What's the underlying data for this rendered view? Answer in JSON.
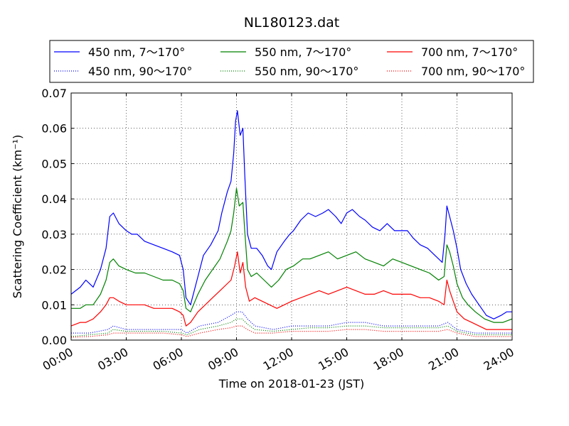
{
  "chart_data": {
    "type": "line",
    "title": "NL180123.dat",
    "xlabel": "Time on 2018-01-23 (JST)",
    "ylabel": "Scattering Coefficient (km⁻¹)",
    "xlim": [
      0,
      24
    ],
    "ylim": [
      0,
      0.07
    ],
    "grid": true,
    "legend_position": "top",
    "x_ticks": [
      {
        "value": 0,
        "label": "00:00"
      },
      {
        "value": 3,
        "label": "03:00"
      },
      {
        "value": 6,
        "label": "06:00"
      },
      {
        "value": 9,
        "label": "09:00"
      },
      {
        "value": 12,
        "label": "12:00"
      },
      {
        "value": 15,
        "label": "15:00"
      },
      {
        "value": 18,
        "label": "18:00"
      },
      {
        "value": 21,
        "label": "21:00"
      },
      {
        "value": 24,
        "label": "24:00"
      }
    ],
    "y_ticks": [
      {
        "value": 0.0,
        "label": "0.00"
      },
      {
        "value": 0.01,
        "label": "0.01"
      },
      {
        "value": 0.02,
        "label": "0.02"
      },
      {
        "value": 0.03,
        "label": "0.03"
      },
      {
        "value": 0.04,
        "label": "0.04"
      },
      {
        "value": 0.05,
        "label": "0.05"
      },
      {
        "value": 0.06,
        "label": "0.06"
      },
      {
        "value": 0.07,
        "label": "0.07"
      }
    ],
    "series": [
      {
        "name": "450 nm, 7～170°",
        "color": "#0000ff",
        "style": "solid",
        "x": [
          0,
          0.5,
          0.8,
          1.2,
          1.6,
          1.9,
          2.1,
          2.3,
          2.6,
          3.0,
          3.3,
          3.6,
          4.0,
          4.5,
          5.0,
          5.5,
          5.9,
          6.1,
          6.25,
          6.5,
          6.9,
          7.2,
          7.6,
          8.0,
          8.2,
          8.5,
          8.7,
          8.85,
          8.95,
          9.05,
          9.2,
          9.35,
          9.45,
          9.6,
          9.8,
          10.1,
          10.4,
          10.7,
          10.9,
          11.2,
          11.6,
          11.9,
          12.1,
          12.5,
          12.9,
          13.3,
          13.7,
          14.0,
          14.4,
          14.7,
          15.0,
          15.3,
          15.7,
          16.0,
          16.4,
          16.8,
          17.2,
          17.6,
          18.0,
          18.3,
          18.6,
          19.0,
          19.4,
          19.8,
          20.2,
          20.35,
          20.45,
          20.6,
          20.8,
          21.0,
          21.2,
          21.5,
          21.8,
          22.2,
          22.6,
          23.0,
          23.4,
          23.7,
          24.0
        ],
        "y": [
          0.013,
          0.015,
          0.017,
          0.015,
          0.02,
          0.026,
          0.035,
          0.036,
          0.033,
          0.031,
          0.03,
          0.03,
          0.028,
          0.027,
          0.026,
          0.025,
          0.024,
          0.02,
          0.012,
          0.01,
          0.018,
          0.024,
          0.027,
          0.031,
          0.036,
          0.042,
          0.045,
          0.053,
          0.062,
          0.065,
          0.058,
          0.06,
          0.047,
          0.03,
          0.026,
          0.026,
          0.024,
          0.021,
          0.02,
          0.025,
          0.028,
          0.03,
          0.031,
          0.034,
          0.036,
          0.035,
          0.036,
          0.037,
          0.035,
          0.033,
          0.036,
          0.037,
          0.035,
          0.034,
          0.032,
          0.031,
          0.033,
          0.031,
          0.031,
          0.031,
          0.029,
          0.027,
          0.026,
          0.024,
          0.022,
          0.03,
          0.038,
          0.035,
          0.031,
          0.026,
          0.02,
          0.016,
          0.013,
          0.01,
          0.007,
          0.006,
          0.007,
          0.008,
          0.008
        ]
      },
      {
        "name": "550 nm, 7～170°",
        "color": "#008000",
        "style": "solid",
        "x": [
          0,
          0.5,
          0.8,
          1.2,
          1.6,
          1.9,
          2.1,
          2.3,
          2.6,
          3.0,
          3.5,
          4.0,
          4.5,
          5.0,
          5.5,
          5.9,
          6.1,
          6.25,
          6.5,
          6.9,
          7.3,
          7.7,
          8.1,
          8.5,
          8.7,
          8.85,
          9.0,
          9.15,
          9.35,
          9.45,
          9.6,
          9.8,
          10.1,
          10.5,
          10.9,
          11.3,
          11.7,
          12.1,
          12.6,
          13.0,
          13.5,
          14.0,
          14.5,
          15.0,
          15.5,
          16.0,
          16.5,
          17.0,
          17.5,
          18.0,
          18.5,
          19.0,
          19.5,
          20.0,
          20.3,
          20.45,
          20.6,
          20.8,
          21.0,
          21.3,
          21.6,
          22.0,
          22.5,
          23.0,
          23.5,
          24.0
        ],
        "y": [
          0.009,
          0.009,
          0.01,
          0.01,
          0.013,
          0.017,
          0.022,
          0.023,
          0.021,
          0.02,
          0.019,
          0.019,
          0.018,
          0.017,
          0.017,
          0.016,
          0.014,
          0.009,
          0.008,
          0.013,
          0.017,
          0.02,
          0.023,
          0.028,
          0.031,
          0.036,
          0.043,
          0.038,
          0.039,
          0.031,
          0.02,
          0.018,
          0.019,
          0.017,
          0.015,
          0.017,
          0.02,
          0.021,
          0.023,
          0.023,
          0.024,
          0.025,
          0.023,
          0.024,
          0.025,
          0.023,
          0.022,
          0.021,
          0.023,
          0.022,
          0.021,
          0.02,
          0.019,
          0.017,
          0.018,
          0.027,
          0.025,
          0.021,
          0.016,
          0.012,
          0.01,
          0.008,
          0.006,
          0.005,
          0.005,
          0.006
        ]
      },
      {
        "name": "700 nm, 7～170°",
        "color": "#ff0000",
        "style": "solid",
        "x": [
          0,
          0.5,
          0.8,
          1.2,
          1.6,
          1.9,
          2.1,
          2.3,
          2.6,
          3.0,
          3.5,
          4.0,
          4.5,
          5.0,
          5.5,
          5.9,
          6.1,
          6.25,
          6.5,
          6.9,
          7.3,
          7.7,
          8.1,
          8.5,
          8.7,
          8.9,
          9.05,
          9.2,
          9.35,
          9.5,
          9.7,
          10.0,
          10.4,
          10.8,
          11.2,
          11.6,
          12.0,
          12.5,
          13.0,
          13.5,
          14.0,
          14.5,
          15.0,
          15.5,
          16.0,
          16.5,
          17.0,
          17.5,
          18.0,
          18.5,
          19.0,
          19.5,
          20.0,
          20.3,
          20.45,
          20.6,
          20.8,
          21.0,
          21.4,
          21.8,
          22.2,
          22.6,
          23.0,
          23.5,
          24.0
        ],
        "y": [
          0.004,
          0.005,
          0.005,
          0.006,
          0.008,
          0.01,
          0.012,
          0.012,
          0.011,
          0.01,
          0.01,
          0.01,
          0.009,
          0.009,
          0.009,
          0.008,
          0.007,
          0.004,
          0.005,
          0.008,
          0.01,
          0.012,
          0.014,
          0.016,
          0.017,
          0.021,
          0.025,
          0.019,
          0.022,
          0.015,
          0.011,
          0.012,
          0.011,
          0.01,
          0.009,
          0.01,
          0.011,
          0.012,
          0.013,
          0.014,
          0.013,
          0.014,
          0.015,
          0.014,
          0.013,
          0.013,
          0.014,
          0.013,
          0.013,
          0.013,
          0.012,
          0.012,
          0.011,
          0.01,
          0.017,
          0.014,
          0.011,
          0.008,
          0.006,
          0.005,
          0.004,
          0.003,
          0.003,
          0.003,
          0.003
        ]
      },
      {
        "name": "450 nm, 90～170°",
        "color": "#0000ff",
        "style": "dotted",
        "x": [
          0,
          1.0,
          2.0,
          2.3,
          3.0,
          4.0,
          5.0,
          6.0,
          6.3,
          7.0,
          8.0,
          8.7,
          9.0,
          9.3,
          9.6,
          10.0,
          11.0,
          12.0,
          13.0,
          14.0,
          15.0,
          16.0,
          17.0,
          18.0,
          19.0,
          20.0,
          20.5,
          21.0,
          22.0,
          23.0,
          24.0
        ],
        "y": [
          0.002,
          0.002,
          0.003,
          0.004,
          0.003,
          0.003,
          0.003,
          0.003,
          0.002,
          0.004,
          0.005,
          0.007,
          0.008,
          0.008,
          0.006,
          0.004,
          0.003,
          0.004,
          0.004,
          0.004,
          0.005,
          0.005,
          0.004,
          0.004,
          0.004,
          0.004,
          0.005,
          0.003,
          0.002,
          0.002,
          0.002
        ]
      },
      {
        "name": "550 nm, 90～170°",
        "color": "#008000",
        "style": "dotted",
        "x": [
          0,
          1.0,
          2.0,
          2.3,
          3.0,
          4.0,
          5.0,
          6.0,
          6.3,
          7.0,
          8.0,
          8.7,
          9.0,
          9.3,
          9.6,
          10.0,
          11.0,
          12.0,
          13.0,
          14.0,
          15.0,
          16.0,
          17.0,
          18.0,
          19.0,
          20.0,
          20.5,
          21.0,
          22.0,
          23.0,
          24.0
        ],
        "y": [
          0.001,
          0.0015,
          0.002,
          0.003,
          0.0025,
          0.0025,
          0.0025,
          0.002,
          0.0015,
          0.003,
          0.004,
          0.005,
          0.006,
          0.006,
          0.0045,
          0.003,
          0.0025,
          0.003,
          0.0035,
          0.0035,
          0.004,
          0.004,
          0.0035,
          0.0035,
          0.0035,
          0.0035,
          0.004,
          0.0025,
          0.0015,
          0.0015,
          0.0015
        ]
      },
      {
        "name": "700 nm, 90～170°",
        "color": "#ff0000",
        "style": "dotted",
        "x": [
          0,
          1.0,
          2.0,
          2.3,
          3.0,
          4.0,
          5.0,
          6.0,
          6.3,
          7.0,
          8.0,
          8.7,
          9.0,
          9.3,
          9.6,
          10.0,
          11.0,
          12.0,
          13.0,
          14.0,
          15.0,
          16.0,
          17.0,
          18.0,
          19.0,
          20.0,
          20.5,
          21.0,
          22.0,
          23.0,
          24.0
        ],
        "y": [
          0.0008,
          0.001,
          0.0015,
          0.002,
          0.002,
          0.002,
          0.002,
          0.0015,
          0.001,
          0.002,
          0.003,
          0.0035,
          0.004,
          0.004,
          0.003,
          0.002,
          0.002,
          0.0025,
          0.0025,
          0.0025,
          0.003,
          0.003,
          0.0025,
          0.0025,
          0.0025,
          0.0025,
          0.003,
          0.002,
          0.001,
          0.001,
          0.001
        ]
      }
    ]
  }
}
